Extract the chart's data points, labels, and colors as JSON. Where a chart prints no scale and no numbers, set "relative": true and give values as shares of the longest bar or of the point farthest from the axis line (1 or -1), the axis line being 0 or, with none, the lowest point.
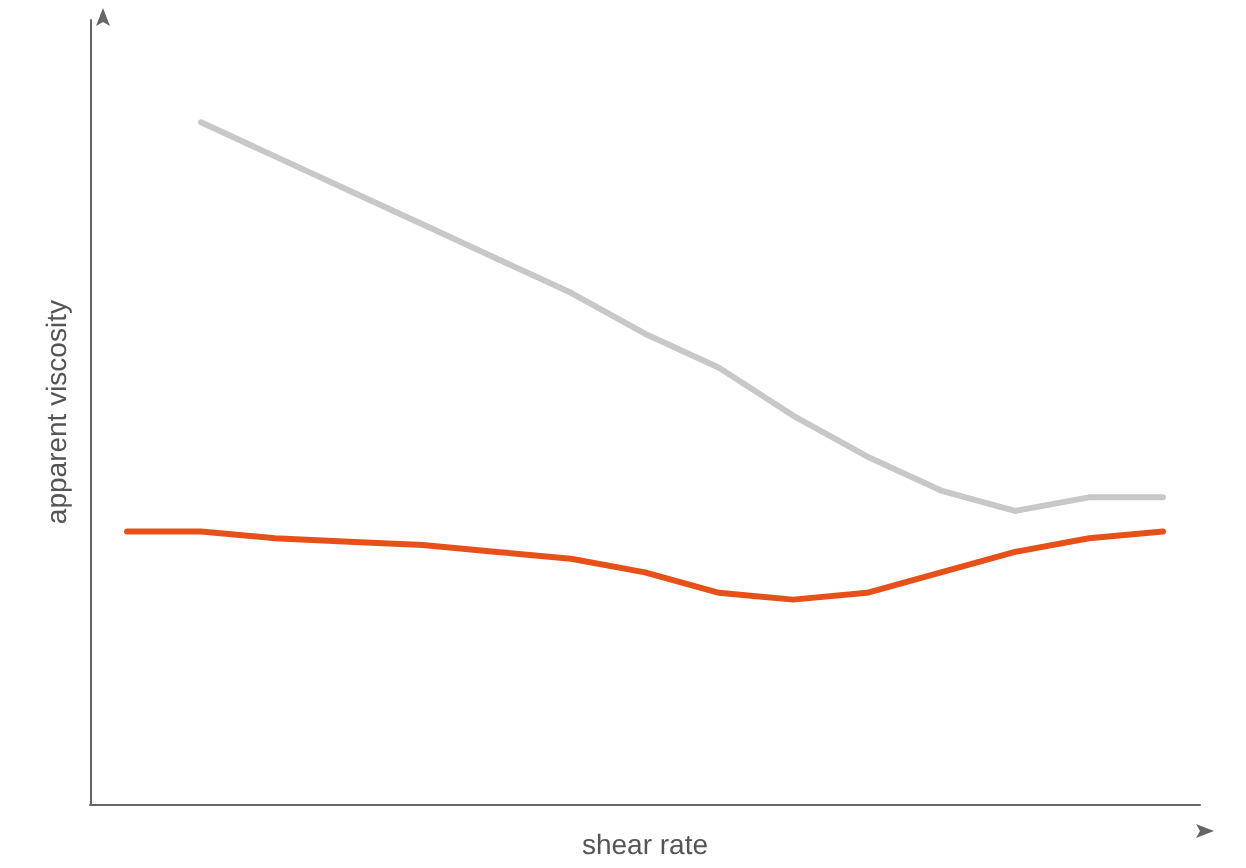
{
  "chart_data": {
    "type": "line",
    "relative": true,
    "xlabel": "shear rate",
    "ylabel": "apparent viscosity",
    "marker": "none",
    "line_style": "solid",
    "categories": [
      null,
      null,
      null,
      null,
      null,
      null,
      null,
      null,
      null,
      null,
      null,
      null,
      null,
      null,
      null
    ],
    "series": [
      {
        "color": "#c8c8c8",
        "values": [
          null,
          1.0,
          0.95,
          0.9,
          0.85,
          0.8,
          0.75,
          0.69,
          0.64,
          0.57,
          0.51,
          0.46,
          0.43,
          0.45,
          0.45
        ]
      },
      {
        "color": "#e8501a",
        "values": [
          0.4,
          0.4,
          0.39,
          0.385,
          0.38,
          0.37,
          0.36,
          0.34,
          0.31,
          0.3,
          0.31,
          0.34,
          0.37,
          0.39,
          0.4
        ]
      }
    ]
  }
}
